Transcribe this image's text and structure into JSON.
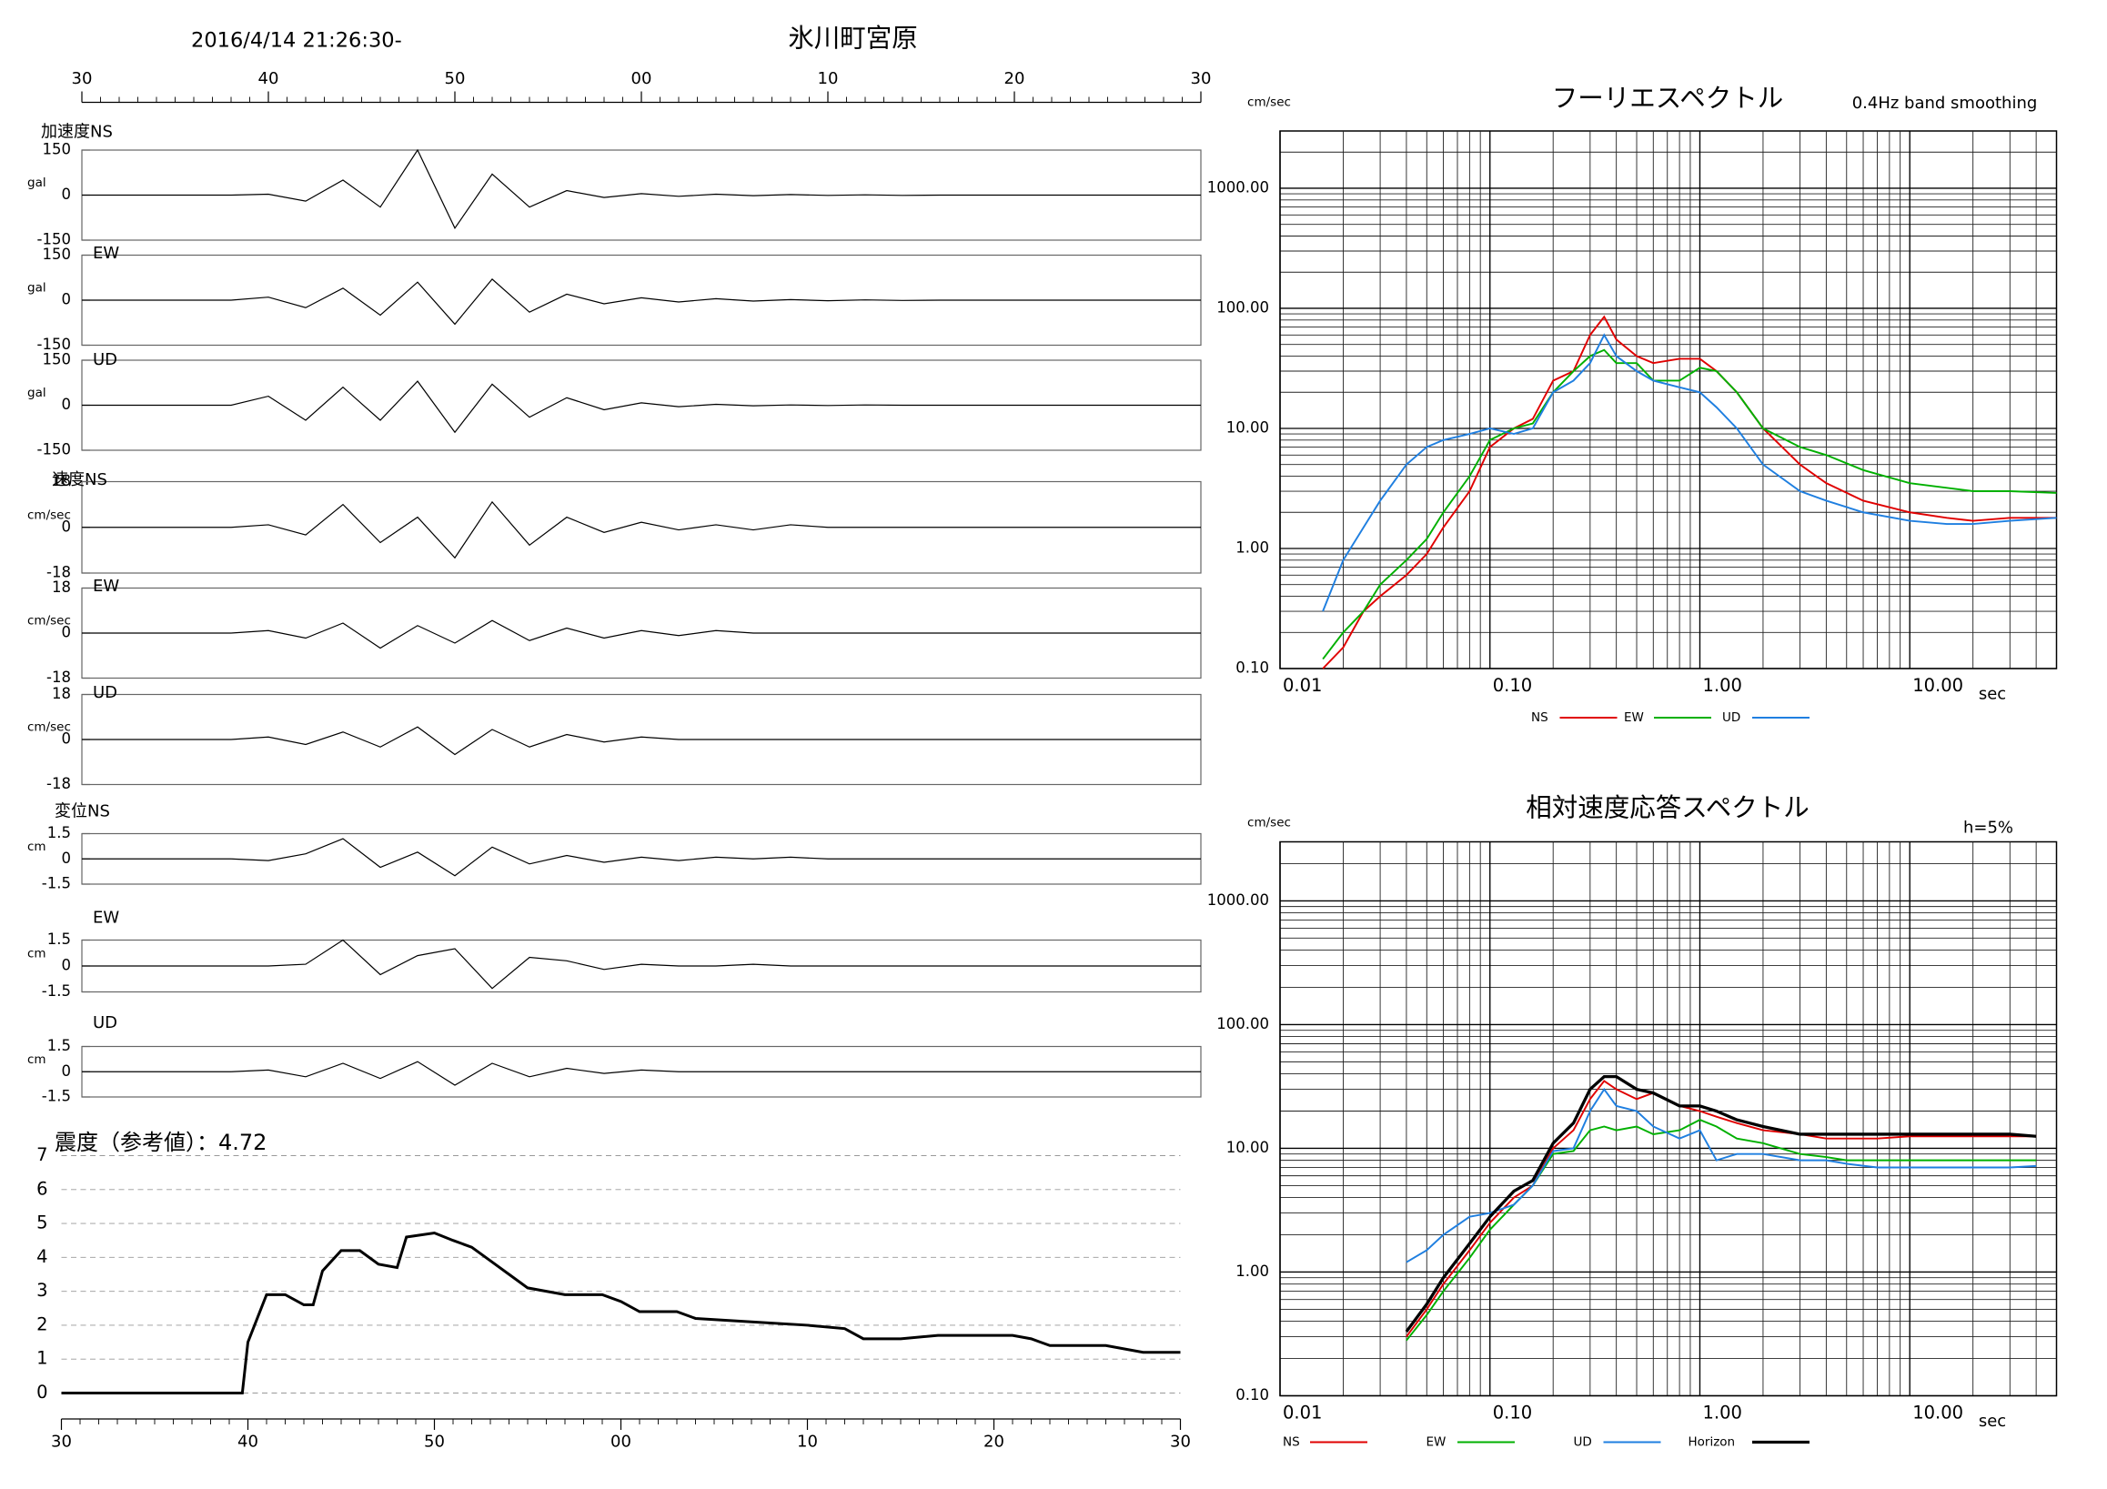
{
  "header": {
    "datetime": "2016/4/14 21:26:30-",
    "station": "氷川町宮原"
  },
  "chart_data": [
    {
      "type": "waveform",
      "xlim": [
        0,
        60
      ],
      "xticks": [
        {
          "value": 0,
          "label": "30"
        },
        {
          "value": 10,
          "label": "40"
        },
        {
          "value": 20,
          "label": "50"
        },
        {
          "value": 30,
          "label": "00"
        },
        {
          "value": 40,
          "label": "10"
        },
        {
          "value": 50,
          "label": "20"
        },
        {
          "value": 60,
          "label": "30"
        }
      ],
      "x": [
        0,
        2,
        4,
        6,
        8,
        10,
        12,
        14,
        16,
        18,
        20,
        22,
        24,
        26,
        28,
        30,
        32,
        34,
        36,
        38,
        40,
        42,
        44,
        46,
        48,
        50,
        52,
        54,
        56,
        58,
        60
      ],
      "panels": [
        {
          "label": "加速度NS",
          "unit": "gal",
          "ylim": [
            -150,
            150
          ],
          "yticks": [
            150,
            0,
            -150
          ],
          "values": [
            0,
            0,
            0,
            0,
            0,
            3,
            -20,
            50,
            -40,
            150,
            -110,
            70,
            -40,
            15,
            -8,
            5,
            -4,
            3,
            -2,
            2,
            -1,
            1,
            -1,
            0,
            0,
            0,
            0,
            0,
            0,
            0,
            0
          ]
        },
        {
          "label": "EW",
          "unit": "gal",
          "ylim": [
            -150,
            150
          ],
          "yticks": [
            150,
            0,
            -150
          ],
          "values": [
            0,
            0,
            0,
            0,
            0,
            10,
            -25,
            40,
            -50,
            60,
            -80,
            70,
            -40,
            20,
            -12,
            8,
            -6,
            5,
            -3,
            2,
            -2,
            1,
            -1,
            0,
            0,
            0,
            0,
            0,
            0,
            0,
            0
          ]
        },
        {
          "label": "UD",
          "unit": "gal",
          "ylim": [
            -150,
            150
          ],
          "yticks": [
            150,
            0,
            -150
          ],
          "values": [
            0,
            0,
            0,
            0,
            0,
            30,
            -50,
            60,
            -50,
            80,
            -90,
            70,
            -40,
            25,
            -15,
            8,
            -5,
            3,
            -2,
            1,
            -1,
            1,
            0,
            0,
            0,
            0,
            0,
            0,
            0,
            0,
            0
          ]
        },
        {
          "label": "速度NS",
          "unit": "cm/sec",
          "ylim": [
            -18,
            18
          ],
          "yticks": [
            18,
            0,
            -18
          ],
          "values": [
            0,
            0,
            0,
            0,
            0,
            1,
            -3,
            9,
            -6,
            4,
            -12,
            10,
            -7,
            4,
            -2,
            2,
            -1,
            1,
            -1,
            1,
            0,
            0,
            0,
            0,
            0,
            0,
            0,
            0,
            0,
            0,
            0
          ]
        },
        {
          "label": "EW",
          "unit": "cm/sec",
          "ylim": [
            -18,
            18
          ],
          "yticks": [
            18,
            0,
            -18
          ],
          "values": [
            0,
            0,
            0,
            0,
            0,
            1,
            -2,
            4,
            -6,
            3,
            -4,
            5,
            -3,
            2,
            -2,
            1,
            -1,
            1,
            0,
            0,
            0,
            0,
            0,
            0,
            0,
            0,
            0,
            0,
            0,
            0,
            0
          ]
        },
        {
          "label": "UD",
          "unit": "cm/sec",
          "ylim": [
            -18,
            18
          ],
          "yticks": [
            18,
            0,
            -18
          ],
          "values": [
            0,
            0,
            0,
            0,
            0,
            1,
            -2,
            3,
            -3,
            5,
            -6,
            4,
            -3,
            2,
            -1,
            1,
            0,
            0,
            0,
            0,
            0,
            0,
            0,
            0,
            0,
            0,
            0,
            0,
            0,
            0,
            0
          ]
        },
        {
          "label": "変位NS",
          "unit": "cm",
          "ylim": [
            -1.5,
            1.5
          ],
          "yticks": [
            1.5,
            0,
            -1.5
          ],
          "values": [
            0,
            0,
            0,
            0,
            0,
            -0.1,
            0.3,
            1.2,
            -0.5,
            0.4,
            -1.0,
            0.7,
            -0.3,
            0.2,
            -0.2,
            0.1,
            -0.1,
            0.1,
            0,
            0.1,
            0,
            0,
            0,
            0,
            0,
            0,
            0,
            0,
            0,
            0,
            0
          ]
        },
        {
          "label": "EW",
          "unit": "cm",
          "ylim": [
            -1.5,
            1.5
          ],
          "yticks": [
            1.5,
            0,
            -1.5
          ],
          "values": [
            0,
            0,
            0,
            0,
            0,
            0,
            0.1,
            1.5,
            -0.5,
            0.6,
            1.0,
            -1.3,
            0.5,
            0.3,
            -0.2,
            0.1,
            0,
            0,
            0.1,
            0,
            0,
            0,
            0,
            0,
            0,
            0,
            0,
            0,
            0,
            0,
            0
          ]
        },
        {
          "label": "UD",
          "unit": "cm",
          "ylim": [
            -1.5,
            1.5
          ],
          "yticks": [
            1.5,
            0,
            -1.5
          ],
          "values": [
            0,
            0,
            0,
            0,
            0,
            0.1,
            -0.3,
            0.5,
            -0.4,
            0.6,
            -0.8,
            0.5,
            -0.3,
            0.2,
            -0.1,
            0.1,
            0,
            0,
            0,
            0,
            0,
            0,
            0,
            0,
            0,
            0,
            0,
            0,
            0,
            0,
            0
          ]
        }
      ]
    },
    {
      "type": "step",
      "title": "震度（参考値）：4.72",
      "xlim": [
        0,
        60
      ],
      "xticks": [
        {
          "value": 0,
          "label": "30"
        },
        {
          "value": 10,
          "label": "40"
        },
        {
          "value": 20,
          "label": "50"
        },
        {
          "value": 30,
          "label": "00"
        },
        {
          "value": 40,
          "label": "10"
        },
        {
          "value": 50,
          "label": "20"
        },
        {
          "value": 60,
          "label": "30"
        }
      ],
      "ylim": [
        0,
        7
      ],
      "yticks": [
        0,
        1,
        2,
        3,
        4,
        5,
        6,
        7
      ],
      "grid": true,
      "color": "#000000",
      "x": [
        0,
        9.7,
        10,
        10.5,
        11,
        12,
        13,
        13.5,
        14,
        15,
        16,
        17,
        18,
        18.5,
        20,
        21,
        22,
        23,
        24,
        25,
        27,
        29,
        30,
        31,
        33,
        34,
        37,
        40,
        42,
        43,
        45,
        47,
        51,
        52,
        53,
        56,
        58,
        60
      ],
      "values": [
        0,
        0,
        1.5,
        2.2,
        2.9,
        2.9,
        2.6,
        2.6,
        3.6,
        4.2,
        4.2,
        3.8,
        3.7,
        4.6,
        4.72,
        4.5,
        4.3,
        3.9,
        3.5,
        3.1,
        2.9,
        2.9,
        2.7,
        2.4,
        2.4,
        2.2,
        2.1,
        2.0,
        1.9,
        1.6,
        1.6,
        1.7,
        1.7,
        1.6,
        1.4,
        1.4,
        1.2,
        1.2
      ]
    },
    {
      "type": "loglog",
      "title": "フーリエスペクトル",
      "subtitle": "0.4Hz band smoothing",
      "y_label": "cm/sec",
      "x_label": "sec",
      "grid": true,
      "xlim": [
        0.01,
        50
      ],
      "ylim": [
        0.1,
        3000
      ],
      "xticks": [
        0.01,
        {
          "value": 0.1,
          "label": "0.10"
        },
        {
          "value": 1,
          "label": "1.00"
        },
        {
          "value": 10,
          "label": "10.00"
        }
      ],
      "yticks": [
        {
          "value": 0.1,
          "label": "0.10"
        },
        {
          "value": 1,
          "label": "1.00"
        },
        {
          "value": 10,
          "label": "10.00"
        },
        {
          "value": 100,
          "label": "100.00"
        },
        {
          "value": 1000,
          "label": "1000.00"
        }
      ],
      "x": [
        0.016,
        0.02,
        0.025,
        0.03,
        0.04,
        0.05,
        0.06,
        0.08,
        0.1,
        0.13,
        0.16,
        0.2,
        0.25,
        0.3,
        0.35,
        0.4,
        0.5,
        0.6,
        0.8,
        1.0,
        1.2,
        1.5,
        2,
        3,
        4,
        6,
        10,
        15,
        20,
        30,
        50
      ],
      "series": [
        {
          "name": "NS",
          "color": "#e00000",
          "values": [
            0.1,
            0.15,
            0.3,
            0.4,
            0.6,
            0.9,
            1.5,
            3,
            7,
            10,
            12,
            25,
            30,
            60,
            85,
            55,
            40,
            35,
            38,
            38,
            30,
            20,
            10,
            5,
            3.5,
            2.5,
            2,
            1.8,
            1.7,
            1.8,
            1.8
          ]
        },
        {
          "name": "EW",
          "color": "#00b000",
          "values": [
            0.12,
            0.2,
            0.3,
            0.5,
            0.8,
            1.2,
            2,
            4,
            8,
            10,
            11,
            20,
            30,
            40,
            45,
            35,
            35,
            25,
            25,
            32,
            30,
            20,
            10,
            7,
            6,
            4.5,
            3.5,
            3.2,
            3.0,
            3.0,
            2.9
          ]
        },
        {
          "name": "UD",
          "color": "#1f7fe0",
          "values": [
            0.3,
            0.8,
            1.5,
            2.5,
            5,
            7,
            8,
            9,
            10,
            9,
            10,
            20,
            25,
            35,
            60,
            40,
            30,
            25,
            22,
            20,
            15,
            10,
            5,
            3,
            2.5,
            2,
            1.7,
            1.6,
            1.6,
            1.7,
            1.8
          ]
        }
      ]
    },
    {
      "type": "loglog",
      "title": "相対速度応答スペクトル",
      "annotation": "h=5%",
      "y_label": "cm/sec",
      "x_label": "sec",
      "grid": true,
      "xlim": [
        0.01,
        50
      ],
      "ylim": [
        0.1,
        3000
      ],
      "xticks": [
        0.01,
        {
          "value": 0.1,
          "label": "0.10"
        },
        {
          "value": 1,
          "label": "1.00"
        },
        {
          "value": 10,
          "label": "10.00"
        }
      ],
      "yticks": [
        {
          "value": 0.1,
          "label": "0.10"
        },
        {
          "value": 1,
          "label": "1.00"
        },
        {
          "value": 10,
          "label": "10.00"
        },
        {
          "value": 100,
          "label": "100.00"
        },
        {
          "value": 1000,
          "label": "1000.00"
        }
      ],
      "x": [
        0.04,
        0.05,
        0.06,
        0.08,
        0.1,
        0.13,
        0.16,
        0.2,
        0.25,
        0.3,
        0.35,
        0.4,
        0.5,
        0.6,
        0.8,
        1.0,
        1.2,
        1.5,
        2,
        3,
        4,
        5,
        7,
        10,
        15,
        20,
        30,
        40
      ],
      "series": [
        {
          "name": "NS",
          "color": "#e00000",
          "values": [
            0.3,
            0.5,
            0.8,
            1.5,
            2.5,
            4,
            5,
            10,
            14,
            25,
            35,
            30,
            25,
            28,
            22,
            20,
            18,
            16,
            14,
            13,
            12,
            12,
            12,
            12.5,
            12.5,
            12.5,
            12.5,
            12.5
          ]
        },
        {
          "name": "EW",
          "color": "#00b000",
          "values": [
            0.28,
            0.45,
            0.7,
            1.3,
            2.2,
            3.5,
            5,
            9,
            9.5,
            14,
            15,
            14,
            15,
            13,
            14,
            17,
            15,
            12,
            11,
            9,
            8.5,
            8,
            8,
            8,
            8,
            8,
            8,
            8
          ]
        },
        {
          "name": "UD",
          "color": "#1f7fe0",
          "values": [
            1.2,
            1.5,
            2,
            2.8,
            3,
            3.5,
            5,
            9.5,
            10,
            20,
            30,
            22,
            20,
            15,
            12,
            14,
            8,
            9,
            9,
            8,
            8,
            7.5,
            7,
            7,
            7,
            7,
            7,
            7.2
          ]
        },
        {
          "name": "Horizon",
          "color": "#000000",
          "values": [
            0.33,
            0.55,
            0.9,
            1.7,
            2.8,
            4.5,
            5.5,
            11,
            16,
            30,
            38,
            38,
            30,
            28,
            22,
            22,
            20,
            17,
            15,
            13,
            13,
            13,
            13,
            13,
            13,
            13,
            13,
            12.5
          ]
        }
      ]
    }
  ]
}
